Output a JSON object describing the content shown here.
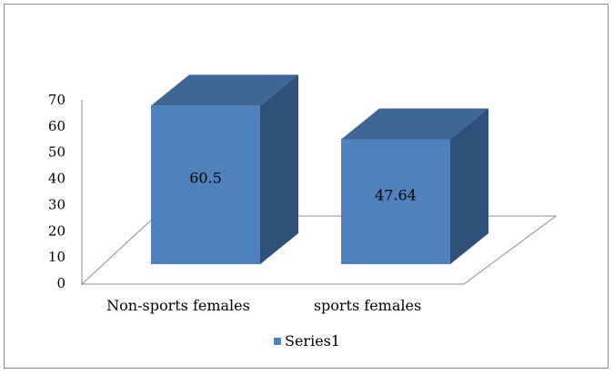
{
  "chart_data": {
    "type": "bar",
    "style": "3d-column",
    "categories": [
      "Non-sports females",
      "sports females"
    ],
    "series": [
      {
        "name": "Series1",
        "values": [
          60.5,
          47.64
        ]
      }
    ],
    "data_labels": [
      "60.5",
      "47.64"
    ],
    "ylim": [
      0,
      70
    ],
    "yticks": [
      0,
      10,
      20,
      30,
      40,
      50,
      60,
      70
    ],
    "title": "",
    "xlabel": "",
    "ylabel": "",
    "grid": false,
    "legend_position": "bottom",
    "colors": {
      "front": "#4f81bd",
      "top": "#3e6697",
      "side": "#2f5079",
      "floor": "#8c8c8c",
      "frame": "#8c8c8c"
    }
  }
}
